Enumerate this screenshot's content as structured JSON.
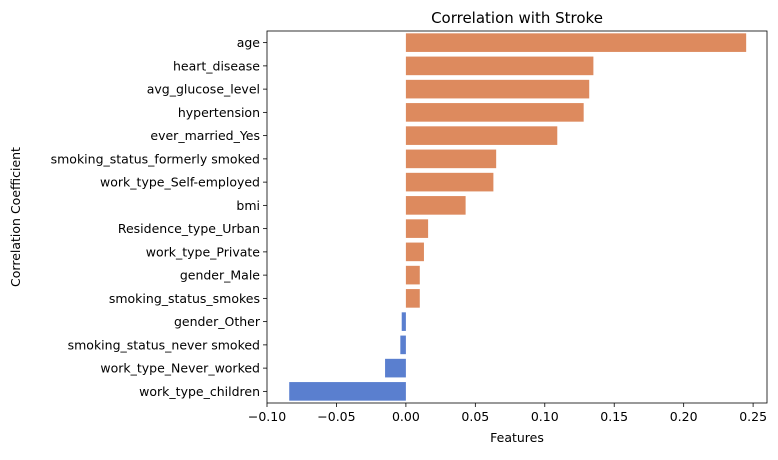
{
  "chart_data": {
    "type": "bar",
    "orientation": "horizontal",
    "title": "Correlation with Stroke",
    "xlabel": "Features",
    "ylabel": "Correlation Coefficient",
    "xlim": [
      -0.1,
      0.26
    ],
    "xticks": [
      -0.1,
      -0.05,
      0.0,
      0.05,
      0.1,
      0.15,
      0.2,
      0.25
    ],
    "xtick_labels": [
      "−0.10",
      "−0.05",
      "0.00",
      "0.05",
      "0.10",
      "0.15",
      "0.20",
      "0.25"
    ],
    "grid": false,
    "colors": {
      "positive": "#dd8a5e",
      "negative": "#5a7fcf"
    },
    "categories": [
      "age",
      "heart_disease",
      "avg_glucose_level",
      "hypertension",
      "ever_married_Yes",
      "smoking_status_formerly smoked",
      "work_type_Self-employed",
      "bmi",
      "Residence_type_Urban",
      "work_type_Private",
      "gender_Male",
      "smoking_status_smokes",
      "gender_Other",
      "smoking_status_never smoked",
      "work_type_Never_worked",
      "work_type_children"
    ],
    "values": [
      0.245,
      0.135,
      0.132,
      0.128,
      0.109,
      0.065,
      0.063,
      0.043,
      0.016,
      0.013,
      0.01,
      0.01,
      -0.003,
      -0.004,
      -0.015,
      -0.084
    ]
  }
}
